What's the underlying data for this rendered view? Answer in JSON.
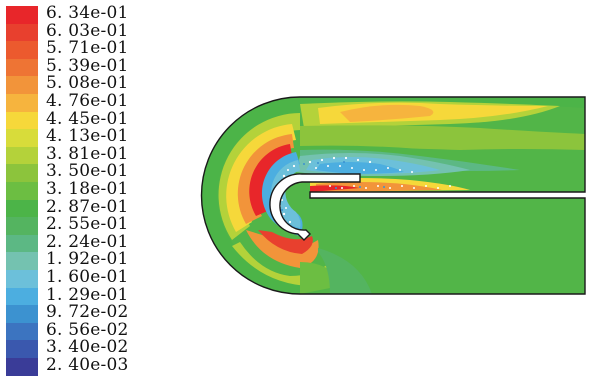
{
  "legend": {
    "labels": [
      "6. 34e-01",
      "6. 03e-01",
      "5. 71e-01",
      "5. 39e-01",
      "5. 08e-01",
      "4. 76e-01",
      "4. 45e-01",
      "4. 13e-01",
      "3. 81e-01",
      "3. 50e-01",
      "3. 18e-01",
      "2. 87e-01",
      "2. 55e-01",
      "2. 24e-01",
      "1. 92e-01",
      "1. 60e-01",
      "1. 29e-01",
      "9. 72e-02",
      "6. 56e-02",
      "3. 40e-02",
      "2. 40e-03"
    ],
    "colors": [
      "#e8262a",
      "#e8402e",
      "#ec5a2e",
      "#ee7434",
      "#f2943a",
      "#f6b43e",
      "#f6d83a",
      "#d8dc3a",
      "#b4d23a",
      "#8cc43c",
      "#6cbe42",
      "#4cb448",
      "#54b460",
      "#5cb884",
      "#74c2b0",
      "#6cc0da",
      "#4caee0",
      "#3c92d0",
      "#3c74c0",
      "#3a58ae",
      "#3a3c98"
    ]
  },
  "colors": {
    "outline": "#1a1a1a",
    "core_green": "#52b548",
    "background": "#ffffff"
  }
}
